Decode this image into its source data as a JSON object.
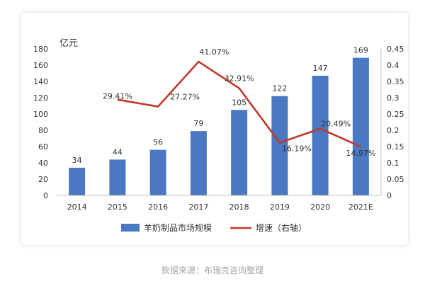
{
  "chart_data": {
    "type": "bar",
    "categories": [
      "2014",
      "2015",
      "2016",
      "2017",
      "2018",
      "2019",
      "2020",
      "2021E"
    ],
    "series": [
      {
        "name": "羊奶制品市场规模",
        "type": "bar",
        "axis": "left",
        "color": "#4a78c2",
        "values": [
          34,
          44,
          56,
          79,
          105,
          122,
          147,
          169
        ],
        "labels": [
          "34",
          "44",
          "56",
          "79",
          "105",
          "122",
          "147",
          "169"
        ]
      },
      {
        "name": "增速（右轴）",
        "type": "line",
        "axis": "right",
        "color": "#c0392b",
        "values": [
          null,
          0.2941,
          0.2727,
          0.4107,
          0.3291,
          0.1619,
          0.2049,
          0.1497
        ],
        "labels": [
          "",
          "29.41%",
          "27.27%",
          "41.07%",
          "32.91%",
          "16.19%",
          "20.49%",
          "14.97%"
        ]
      }
    ],
    "y_left": {
      "unit": "亿元",
      "range": [
        0,
        180
      ],
      "ticks": [
        "0",
        "20",
        "40",
        "60",
        "80",
        "100",
        "120",
        "140",
        "160",
        "180"
      ]
    },
    "y_right": {
      "range": [
        0,
        0.45
      ],
      "ticks": [
        "0",
        "0.05",
        "0.1",
        "0.15",
        "0.2",
        "0.25",
        "0.3",
        "0.35",
        "0.4",
        "0.45"
      ]
    },
    "grid": false,
    "legend": "bottom"
  },
  "source": "数据来源：布瑞克咨询整理"
}
